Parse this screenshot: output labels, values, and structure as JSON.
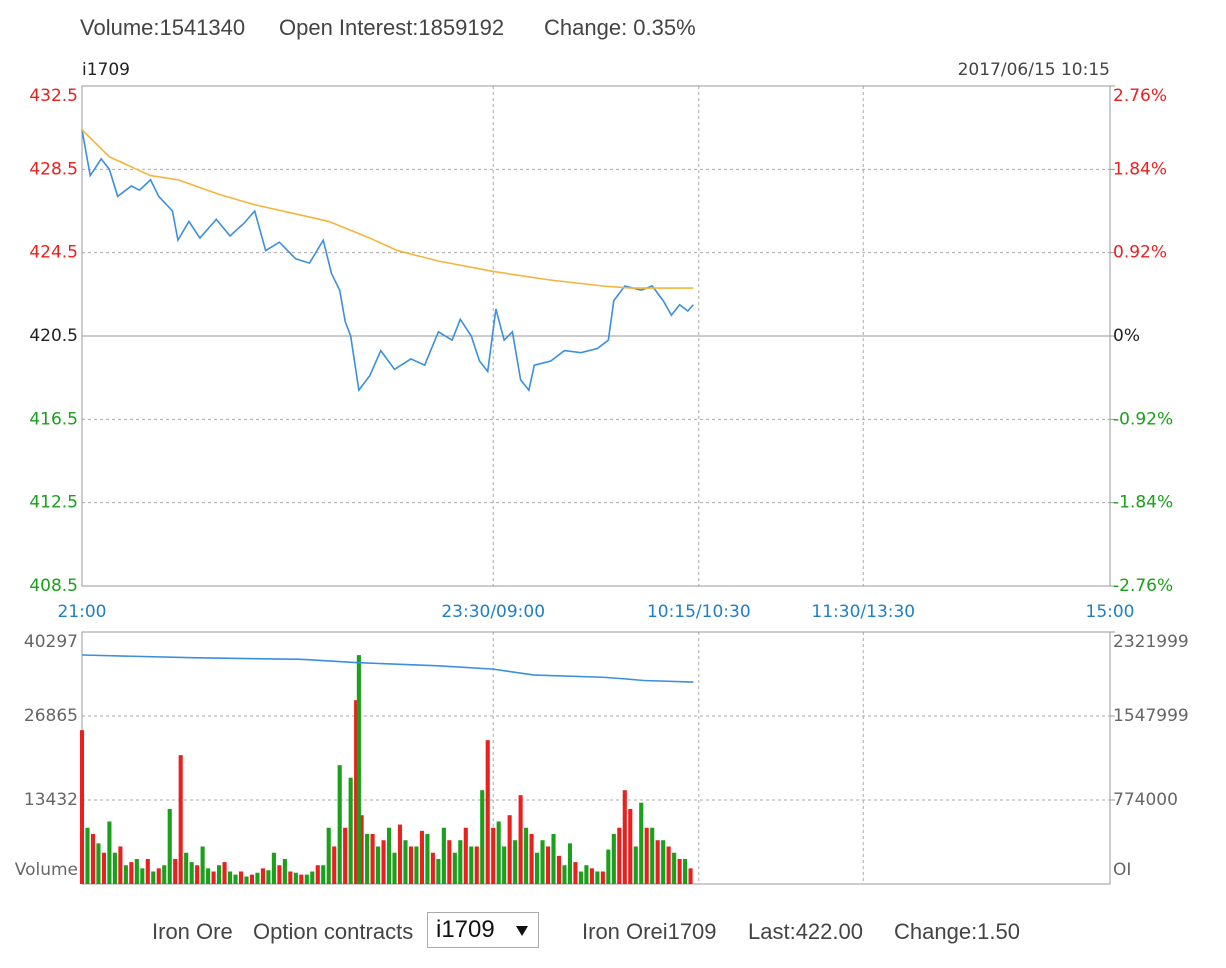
{
  "header": {
    "volume": "Volume:1541340",
    "open_interest": "Open Interest:1859192",
    "change": "Change: 0.35%"
  },
  "chart_data": [
    {
      "type": "line",
      "title": "i1709",
      "subtitle": "2017/06/15 10:15",
      "xlim": [
        0,
        375
      ],
      "xticks": [
        {
          "value": 0,
          "label": "21:00"
        },
        {
          "value": 150,
          "label": "23:30/09:00"
        },
        {
          "value": 225,
          "label": "10:15/10:30"
        },
        {
          "value": 285,
          "label": "11:30/13:30"
        },
        {
          "value": 375,
          "label": "15:00"
        }
      ],
      "ylim": [
        408.5,
        432.5
      ],
      "yticks": [
        432.5,
        428.5,
        424.5,
        420.5,
        416.5,
        412.5,
        408.5
      ],
      "y2lim": [
        -2.76,
        2.76
      ],
      "y2ticks": [
        {
          "value": 2.76,
          "label": "2.76%"
        },
        {
          "value": 1.84,
          "label": "1.84%"
        },
        {
          "value": 0.92,
          "label": "0.92%"
        },
        {
          "value": 0,
          "label": "0%"
        },
        {
          "value": -0.92,
          "label": "-0.92%"
        },
        {
          "value": -1.84,
          "label": "-1.84%"
        },
        {
          "value": -2.76,
          "label": "-2.76%"
        }
      ],
      "up_color": "#e8211f",
      "down_color": "#1aa01a",
      "flat_color": "#222",
      "grid": true,
      "series": [
        {
          "color": "#3b8fde",
          "x": [
            0,
            3,
            7,
            10,
            13,
            18,
            21,
            25,
            28,
            33,
            35,
            39,
            43,
            49,
            54,
            59,
            63,
            67,
            72,
            78,
            83,
            88,
            91,
            94,
            96,
            98,
            101,
            105,
            109,
            114,
            120,
            125,
            130,
            135,
            138,
            142,
            145,
            148,
            151,
            154,
            157,
            160,
            163,
            165,
            171,
            176,
            182,
            188,
            192,
            194,
            198,
            204,
            208,
            212,
            215,
            218,
            221,
            223
          ],
          "values": [
            430.4,
            428.2,
            429.0,
            428.5,
            427.2,
            427.7,
            427.5,
            428.0,
            427.2,
            426.5,
            425.1,
            426.0,
            425.2,
            426.1,
            425.3,
            425.9,
            426.5,
            424.6,
            425.0,
            424.2,
            424.0,
            425.1,
            423.5,
            422.7,
            421.2,
            420.5,
            417.9,
            418.6,
            419.8,
            418.9,
            419.4,
            419.1,
            420.7,
            420.3,
            421.3,
            420.5,
            419.3,
            418.8,
            421.8,
            420.3,
            420.7,
            418.4,
            417.9,
            419.1,
            419.3,
            419.8,
            419.7,
            419.9,
            420.3,
            422.2,
            422.9,
            422.7,
            422.9,
            422.2,
            421.5,
            422.0,
            421.7,
            422.0
          ]
        },
        {
          "color": "#f5b43c",
          "x": [
            0,
            10,
            25,
            35,
            50,
            63,
            80,
            90,
            105,
            115,
            130,
            150,
            170,
            190,
            200,
            223
          ],
          "values": [
            430.4,
            429.1,
            428.2,
            428.0,
            427.3,
            426.8,
            426.3,
            426.0,
            425.2,
            424.6,
            424.1,
            423.6,
            423.2,
            422.9,
            422.8,
            422.8
          ]
        }
      ]
    },
    {
      "type": "bar",
      "ylabel": "Volume",
      "y2label": "OI",
      "xlim": [
        0,
        375
      ],
      "ylim": [
        0,
        40297
      ],
      "yticks": [
        13432,
        26865,
        40297
      ],
      "y2lim": [
        0,
        2321999
      ],
      "y2ticks": [
        774000,
        1547999,
        2321999
      ],
      "grid": true,
      "series": [
        {
          "color": "#e8211f",
          "x": [
            0,
            4,
            8,
            14,
            18,
            24,
            28,
            34,
            36,
            42,
            48,
            52,
            58,
            62,
            66,
            72,
            76,
            80,
            86,
            92,
            96,
            100,
            102,
            106,
            110,
            116,
            120,
            124,
            128,
            134,
            140,
            144,
            148,
            150,
            156,
            160,
            164,
            170,
            174,
            180,
            186,
            190,
            196,
            198,
            200,
            206,
            210,
            214,
            218,
            222
          ],
          "values": [
            24600,
            8000,
            5000,
            6000,
            3500,
            4000,
            2500,
            4000,
            20600,
            3000,
            2000,
            3500,
            2000,
            1500,
            2500,
            3000,
            2000,
            1500,
            3000,
            6000,
            9000,
            29400,
            11000,
            8000,
            7000,
            9500,
            6000,
            8500,
            5000,
            7000,
            9000,
            6000,
            23000,
            9000,
            11000,
            14200,
            8000,
            6000,
            4500,
            3500,
            2500,
            2000,
            9000,
            15000,
            12000,
            9000,
            7000,
            6000,
            4000,
            2500
          ]
        },
        {
          "color": "#1aa01a",
          "x": [
            2,
            6,
            10,
            12,
            16,
            20,
            22,
            26,
            30,
            32,
            38,
            40,
            44,
            46,
            50,
            54,
            56,
            60,
            64,
            68,
            70,
            74,
            78,
            82,
            84,
            88,
            90,
            94,
            98,
            101,
            104,
            108,
            112,
            114,
            118,
            122,
            126,
            130,
            132,
            136,
            138,
            142,
            146,
            152,
            154,
            158,
            162,
            166,
            168,
            172,
            176,
            178,
            182,
            184,
            188,
            192,
            194,
            202,
            204,
            208,
            212,
            216,
            220
          ],
          "values": [
            9000,
            6500,
            10000,
            5000,
            3000,
            4000,
            2500,
            2000,
            3000,
            12000,
            5000,
            3500,
            6000,
            2500,
            3000,
            2000,
            1500,
            1200,
            1800,
            2200,
            5000,
            4000,
            1800,
            1500,
            2000,
            3000,
            9000,
            19000,
            17000,
            36600,
            8000,
            6000,
            9000,
            5000,
            7000,
            6000,
            8000,
            4000,
            9000,
            5000,
            7000,
            6000,
            15000,
            10000,
            6000,
            7000,
            9000,
            5000,
            7000,
            8000,
            3000,
            6500,
            2000,
            3000,
            2000,
            5500,
            8000,
            6000,
            13000,
            9000,
            7000,
            5000,
            4000
          ]
        },
        {
          "type": "line",
          "axis": "y2",
          "color": "#3b8fde",
          "x": [
            0,
            40,
            80,
            100,
            130,
            150,
            165,
            190,
            198,
            205,
            223
          ],
          "values": [
            2110000,
            2085000,
            2070000,
            2040000,
            2010000,
            1980000,
            1925000,
            1905000,
            1890000,
            1875000,
            1861000
          ]
        }
      ]
    }
  ],
  "footer": {
    "product": "Iron Ore",
    "contracts_label": "Option contracts",
    "selected": "i1709",
    "name": "Iron Orei1709",
    "last": "Last:422.00",
    "change": "Change:1.50"
  }
}
